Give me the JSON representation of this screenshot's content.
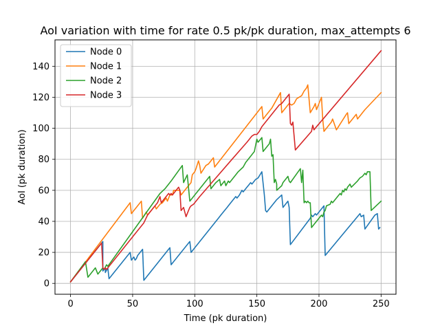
{
  "chart_data": {
    "type": "line",
    "title": "AoI variation with time for rate 0.5 pk/pk duration, max_attempts 6",
    "xlabel": "Time (pk duration)",
    "ylabel": "AoI (pk duration)",
    "xlim": [
      -12.5,
      262
    ],
    "ylim": [
      -7,
      157
    ],
    "xticks": [
      0,
      50,
      100,
      150,
      200,
      250
    ],
    "yticks": [
      0,
      20,
      40,
      60,
      80,
      100,
      120,
      140
    ],
    "grid": true,
    "legend_position": "top-left",
    "series": [
      {
        "name": "Node 0",
        "color": "#1f77b4",
        "points": [
          [
            0,
            1
          ],
          [
            26,
            27
          ],
          [
            26,
            8
          ],
          [
            28,
            10
          ],
          [
            28,
            7
          ],
          [
            30,
            10
          ],
          [
            31,
            3
          ],
          [
            48,
            20
          ],
          [
            49,
            15
          ],
          [
            51,
            17
          ],
          [
            52,
            15
          ],
          [
            53,
            16
          ],
          [
            54,
            18
          ],
          [
            58,
            22
          ],
          [
            59,
            2
          ],
          [
            80,
            23
          ],
          [
            81,
            12
          ],
          [
            96,
            27
          ],
          [
            97,
            20
          ],
          [
            120,
            43
          ],
          [
            121,
            44
          ],
          [
            124,
            47
          ],
          [
            126,
            49
          ],
          [
            128,
            51
          ],
          [
            130,
            53
          ],
          [
            133,
            56
          ],
          [
            134,
            55
          ],
          [
            136,
            57
          ],
          [
            138,
            60
          ],
          [
            139,
            59
          ],
          [
            140,
            60
          ],
          [
            142,
            62
          ],
          [
            143,
            63
          ],
          [
            145,
            65
          ],
          [
            146,
            64
          ],
          [
            148,
            66
          ],
          [
            149,
            67
          ],
          [
            151,
            68
          ],
          [
            154,
            72
          ],
          [
            156,
            57
          ],
          [
            157,
            47
          ],
          [
            158,
            46
          ],
          [
            166,
            54
          ],
          [
            170,
            57
          ],
          [
            171,
            49
          ],
          [
            174,
            52
          ],
          [
            175,
            53
          ],
          [
            176,
            49
          ],
          [
            177,
            25
          ],
          [
            193,
            42
          ],
          [
            194,
            44
          ],
          [
            195,
            43
          ],
          [
            197,
            45
          ],
          [
            198,
            44
          ],
          [
            204,
            50
          ],
          [
            205,
            18
          ],
          [
            233,
            45
          ],
          [
            234,
            43
          ],
          [
            236,
            44
          ],
          [
            237,
            35
          ],
          [
            245,
            44
          ],
          [
            247,
            45
          ],
          [
            248,
            35
          ],
          [
            249,
            36
          ]
        ]
      },
      {
        "name": "Node 1",
        "color": "#ff7f0e",
        "points": [
          [
            0,
            1
          ],
          [
            48,
            52
          ],
          [
            49,
            45
          ],
          [
            57,
            53
          ],
          [
            58,
            42
          ],
          [
            61,
            46
          ],
          [
            62,
            44
          ],
          [
            68,
            50
          ],
          [
            69,
            48
          ],
          [
            72,
            51
          ],
          [
            74,
            52
          ],
          [
            75,
            53
          ],
          [
            77,
            55
          ],
          [
            78,
            53
          ],
          [
            80,
            57
          ],
          [
            82,
            57
          ],
          [
            83,
            60
          ],
          [
            88,
            60
          ],
          [
            89,
            57
          ],
          [
            92,
            60
          ],
          [
            94,
            62
          ],
          [
            97,
            65
          ],
          [
            98,
            70
          ],
          [
            100,
            72
          ],
          [
            101,
            74
          ],
          [
            103,
            79
          ],
          [
            104,
            76
          ],
          [
            105,
            71
          ],
          [
            109,
            76
          ],
          [
            111,
            77
          ],
          [
            115,
            81
          ],
          [
            116,
            75
          ],
          [
            154,
            114
          ],
          [
            155,
            106
          ],
          [
            157,
            108
          ],
          [
            162,
            113
          ],
          [
            169,
            123
          ],
          [
            170,
            110
          ],
          [
            174,
            114
          ],
          [
            176,
            116
          ],
          [
            178,
            115
          ],
          [
            180,
            116
          ],
          [
            182,
            119
          ],
          [
            186,
            121
          ],
          [
            188,
            124
          ],
          [
            190,
            126
          ],
          [
            191,
            128
          ],
          [
            193,
            110
          ],
          [
            196,
            114
          ],
          [
            197,
            116
          ],
          [
            198,
            112
          ],
          [
            200,
            116
          ],
          [
            201,
            118
          ],
          [
            202,
            120
          ],
          [
            203,
            106
          ],
          [
            204,
            98
          ],
          [
            209,
            103
          ],
          [
            210,
            104
          ],
          [
            211,
            106
          ],
          [
            214,
            99
          ],
          [
            222,
            109
          ],
          [
            223,
            110
          ],
          [
            224,
            103
          ],
          [
            230,
            109
          ],
          [
            231,
            106
          ],
          [
            236,
            111
          ],
          [
            237,
            112
          ],
          [
            250,
            123
          ]
        ]
      },
      {
        "name": "Node 2",
        "color": "#2ca02c",
        "points": [
          [
            0,
            1
          ],
          [
            12,
            14
          ],
          [
            14,
            4
          ],
          [
            20,
            10
          ],
          [
            22,
            6
          ],
          [
            25,
            9
          ],
          [
            26,
            10
          ],
          [
            27,
            9
          ],
          [
            29,
            12
          ],
          [
            30,
            11
          ],
          [
            72,
            58
          ],
          [
            76,
            61
          ],
          [
            78,
            63
          ],
          [
            81,
            66
          ],
          [
            90,
            76
          ],
          [
            91,
            65
          ],
          [
            94,
            70
          ],
          [
            96,
            53
          ],
          [
            112,
            69
          ],
          [
            113,
            61
          ],
          [
            116,
            64
          ],
          [
            117,
            65
          ],
          [
            120,
            67
          ],
          [
            121,
            63
          ],
          [
            124,
            66
          ],
          [
            125,
            63
          ],
          [
            127,
            66
          ],
          [
            128,
            65
          ],
          [
            135,
            72
          ],
          [
            139,
            75
          ],
          [
            141,
            78
          ],
          [
            143,
            80
          ],
          [
            148,
            85
          ],
          [
            150,
            93
          ],
          [
            151,
            91
          ],
          [
            154,
            94
          ],
          [
            155,
            85
          ],
          [
            159,
            89
          ],
          [
            160,
            90
          ],
          [
            161,
            93
          ],
          [
            162,
            82
          ],
          [
            163,
            83
          ],
          [
            164,
            65
          ],
          [
            165,
            67
          ],
          [
            166,
            64
          ],
          [
            166,
            60
          ],
          [
            170,
            63
          ],
          [
            171,
            65
          ],
          [
            175,
            69
          ],
          [
            176,
            66
          ],
          [
            177,
            65
          ],
          [
            185,
            74
          ],
          [
            186,
            65
          ],
          [
            187,
            73
          ],
          [
            188,
            52
          ],
          [
            189,
            53
          ],
          [
            190,
            52
          ],
          [
            191,
            53
          ],
          [
            192,
            52
          ],
          [
            193,
            52
          ],
          [
            194,
            36
          ],
          [
            202,
            44
          ],
          [
            203,
            43
          ],
          [
            204,
            46
          ],
          [
            205,
            47
          ],
          [
            206,
            50
          ],
          [
            209,
            51
          ],
          [
            210,
            53
          ],
          [
            211,
            52
          ],
          [
            217,
            58
          ],
          [
            218,
            57
          ],
          [
            219,
            60
          ],
          [
            220,
            59
          ],
          [
            221,
            61
          ],
          [
            222,
            60
          ],
          [
            223,
            62
          ],
          [
            224,
            63
          ],
          [
            225,
            64
          ],
          [
            226,
            62
          ],
          [
            231,
            66
          ],
          [
            232,
            67
          ],
          [
            233,
            68
          ],
          [
            235,
            69
          ],
          [
            236,
            70
          ],
          [
            237,
            71
          ],
          [
            238,
            70
          ],
          [
            239,
            72
          ],
          [
            241,
            72
          ],
          [
            242,
            47
          ],
          [
            250,
            53
          ]
        ]
      },
      {
        "name": "Node 3",
        "color": "#d62728",
        "points": [
          [
            0,
            1
          ],
          [
            25,
            26
          ],
          [
            26,
            10
          ],
          [
            27,
            9
          ],
          [
            28,
            10
          ],
          [
            29,
            9
          ],
          [
            52,
            32
          ],
          [
            59,
            39
          ],
          [
            62,
            44
          ],
          [
            66,
            48
          ],
          [
            68,
            50
          ],
          [
            70,
            52
          ],
          [
            72,
            56
          ],
          [
            73,
            52
          ],
          [
            76,
            55
          ],
          [
            79,
            58
          ],
          [
            80,
            57
          ],
          [
            81,
            58
          ],
          [
            82,
            57
          ],
          [
            83,
            58
          ],
          [
            85,
            60
          ],
          [
            87,
            62
          ],
          [
            88,
            60
          ],
          [
            89,
            47
          ],
          [
            91,
            49
          ],
          [
            93,
            43
          ],
          [
            95,
            47
          ],
          [
            96,
            49
          ],
          [
            97,
            50
          ],
          [
            99,
            51
          ],
          [
            101,
            53
          ],
          [
            104,
            56
          ],
          [
            130,
            80
          ],
          [
            142,
            91
          ],
          [
            144,
            93
          ],
          [
            146,
            95
          ],
          [
            148,
            96
          ],
          [
            150,
            96
          ],
          [
            152,
            98
          ],
          [
            154,
            101
          ],
          [
            156,
            103
          ],
          [
            158,
            105
          ],
          [
            160,
            107
          ],
          [
            162,
            109
          ],
          [
            164,
            111
          ],
          [
            166,
            113
          ],
          [
            168,
            115
          ],
          [
            170,
            116
          ],
          [
            172,
            118
          ],
          [
            174,
            120
          ],
          [
            176,
            122
          ],
          [
            177,
            103
          ],
          [
            178,
            102
          ],
          [
            179,
            104
          ],
          [
            181,
            86
          ],
          [
            194,
            98
          ],
          [
            195,
            102
          ],
          [
            196,
            99
          ],
          [
            198,
            101
          ],
          [
            250,
            150
          ]
        ]
      }
    ]
  }
}
